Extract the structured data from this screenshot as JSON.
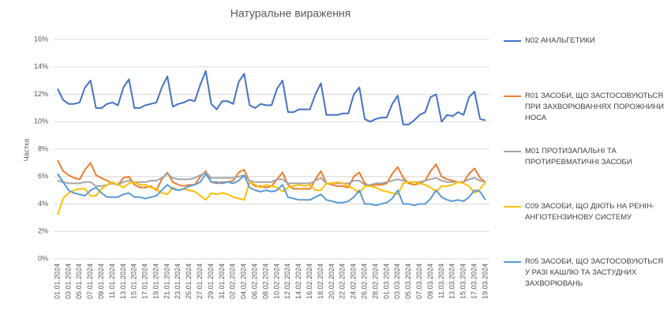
{
  "chart_data": {
    "type": "line",
    "title": "Натуральне вираження",
    "y_label": "Частка",
    "categories": [
      "01.01.2024",
      null,
      "03.01.2024",
      null,
      "05.01.2024",
      null,
      "07.01.2024",
      null,
      "09.01.2024",
      null,
      "11.01.2024",
      null,
      "13.01.2024",
      null,
      "15.01.2024",
      null,
      "17.01.2024",
      null,
      "19.01.2024",
      null,
      "21.01.2024",
      null,
      "23.01.2024",
      null,
      "25.01.2024",
      null,
      "27.01.2024",
      null,
      "29.01.2024",
      null,
      "31.01.2024",
      null,
      "02.02.2024",
      null,
      "04.02.2024",
      null,
      "06.02.2024",
      null,
      "08.02.2024",
      null,
      "10.02.2024",
      null,
      "12.02.2024",
      null,
      "14.02.2024",
      null,
      "16.02.2024",
      null,
      "18.02.2024",
      null,
      "20.02.2024",
      null,
      "22.02.2024",
      null,
      "24.02.2024",
      null,
      "26.02.2024",
      null,
      "28.02.2024",
      null,
      "01.03.2024",
      null,
      "03.03.2024",
      null,
      "05.03.2024",
      null,
      "07.03.2024",
      null,
      "09.03.2024",
      null,
      "11.03.2024",
      null,
      "13.03.2024",
      null,
      "15.03.2024",
      null,
      "17.03.2024",
      null,
      "19.03.2024"
    ],
    "series": [
      {
        "name": "N02 АНАЛЬГЕТИКИ",
        "color": "#4472c4",
        "values": [
          12.4,
          11.6,
          11.3,
          11.3,
          11.4,
          12.5,
          13.0,
          11.0,
          11.0,
          11.3,
          11.4,
          11.2,
          12.5,
          13.1,
          11.0,
          11.0,
          11.2,
          11.3,
          11.4,
          12.5,
          13.3,
          11.1,
          11.3,
          11.4,
          11.6,
          11.5,
          12.7,
          13.7,
          11.3,
          10.9,
          11.5,
          11.5,
          11.3,
          12.9,
          13.5,
          11.2,
          11.0,
          11.3,
          11.2,
          11.2,
          12.4,
          13.0,
          10.7,
          10.7,
          10.9,
          10.9,
          10.9,
          12.0,
          12.8,
          10.5,
          10.5,
          10.5,
          10.6,
          10.6,
          12.0,
          12.5,
          10.2,
          10.0,
          10.2,
          10.3,
          10.3,
          11.3,
          11.9,
          9.8,
          9.8,
          10.1,
          10.5,
          10.7,
          11.8,
          12.0,
          10.0,
          10.5,
          10.4,
          10.7,
          10.5,
          11.8,
          12.2,
          10.2,
          10.1
        ]
      },
      {
        "name": "R01 ЗАСОБИ, ЩО ЗАСТОСОВУЮТЬСЯ ПРИ ЗАХВОРЮВАННЯХ ПОРОЖНИНИ НОСА",
        "color": "#ed7d31",
        "values": [
          7.2,
          6.4,
          6.1,
          5.9,
          5.8,
          6.5,
          7.0,
          6.1,
          5.9,
          5.7,
          5.5,
          5.4,
          5.9,
          6.0,
          5.4,
          5.2,
          5.2,
          5.3,
          5.0,
          5.8,
          6.3,
          5.6,
          5.4,
          5.3,
          5.4,
          5.4,
          6.0,
          6.4,
          5.6,
          5.5,
          5.6,
          5.6,
          5.7,
          6.3,
          6.5,
          5.6,
          5.3,
          5.3,
          5.2,
          5.3,
          5.8,
          6.3,
          5.4,
          5.1,
          5.1,
          5.1,
          5.1,
          5.8,
          6.4,
          5.5,
          5.4,
          5.3,
          5.3,
          5.2,
          6.0,
          6.3,
          5.5,
          5.3,
          5.4,
          5.4,
          5.5,
          6.2,
          6.7,
          5.9,
          5.5,
          5.4,
          5.5,
          5.7,
          6.4,
          6.9,
          6.0,
          5.8,
          5.7,
          5.6,
          5.6,
          6.2,
          6.6,
          5.9,
          5.6
        ]
      },
      {
        "name": "M01 ПРОТИЗАПАЛЬНІ ТА ПРОТИРЕВМАТИЧНІ ЗАСОБИ",
        "color": "#a5a5a5",
        "values": [
          5.7,
          5.6,
          5.5,
          5.5,
          5.5,
          5.6,
          5.6,
          5.3,
          5.3,
          5.4,
          5.5,
          5.4,
          5.6,
          5.7,
          5.6,
          5.6,
          5.6,
          5.7,
          5.7,
          5.9,
          6.2,
          5.9,
          5.8,
          5.8,
          5.8,
          5.9,
          6.1,
          6.3,
          5.9,
          5.9,
          5.9,
          5.9,
          5.9,
          6.0,
          6.1,
          5.7,
          5.6,
          5.6,
          5.6,
          5.6,
          5.8,
          5.8,
          5.5,
          5.5,
          5.5,
          5.5,
          5.5,
          5.7,
          5.9,
          5.5,
          5.5,
          5.5,
          5.5,
          5.5,
          5.7,
          5.7,
          5.4,
          5.4,
          5.5,
          5.5,
          5.6,
          5.7,
          5.8,
          5.7,
          5.6,
          5.6,
          5.6,
          5.7,
          5.8,
          5.9,
          5.7,
          5.6,
          5.6,
          5.6,
          5.6,
          5.8,
          5.9,
          5.7,
          5.6
        ]
      },
      {
        "name": "C09 ЗАСОБИ, ЩО ДІЮТЬ НА РЕНІН-АНГІОТЕНЗИНОВУ СИСТЕМУ",
        "color": "#ffc000",
        "values": [
          3.2,
          4.4,
          4.8,
          5.0,
          5.1,
          5.1,
          4.6,
          4.6,
          5.1,
          5.4,
          5.6,
          5.4,
          5.2,
          5.5,
          5.6,
          5.4,
          5.4,
          5.2,
          5.1,
          4.8,
          4.7,
          5.2,
          5.0,
          5.1,
          5.0,
          4.9,
          4.6,
          4.3,
          4.8,
          4.7,
          4.8,
          4.7,
          4.5,
          4.4,
          4.3,
          5.6,
          5.4,
          5.2,
          5.4,
          5.3,
          5.2,
          4.9,
          5.2,
          5.3,
          5.4,
          5.3,
          5.4,
          5.0,
          5.0,
          5.5,
          5.5,
          5.6,
          5.5,
          5.3,
          5.1,
          4.8,
          5.3,
          5.3,
          5.2,
          5.0,
          4.9,
          4.8,
          4.7,
          5.5,
          5.6,
          5.6,
          5.5,
          5.4,
          5.2,
          4.9,
          5.3,
          5.3,
          5.4,
          5.6,
          5.5,
          5.3,
          4.8,
          5.1,
          5.6
        ]
      },
      {
        "name": "R05 ЗАСОБИ, ЩО ЗАСТОСОВУЮТЬСЯ У РАЗІ КАШЛЮ ТА ЗАСТУДНИХ ЗАХВОРЮВАНЬ",
        "color": "#5b9bd5",
        "values": [
          6.2,
          5.6,
          5.0,
          4.8,
          4.7,
          4.6,
          5.0,
          5.2,
          4.8,
          4.5,
          4.5,
          4.5,
          4.7,
          4.8,
          4.5,
          4.5,
          4.4,
          4.5,
          4.6,
          5.0,
          5.4,
          5.1,
          5.0,
          5.1,
          5.3,
          5.4,
          5.6,
          6.2,
          5.6,
          5.6,
          5.5,
          5.6,
          5.5,
          5.7,
          6.1,
          5.2,
          5.0,
          4.9,
          5.0,
          4.9,
          5.0,
          5.4,
          4.5,
          4.4,
          4.3,
          4.3,
          4.3,
          4.5,
          4.7,
          4.3,
          4.2,
          4.1,
          4.1,
          4.2,
          4.5,
          5.0,
          4.0,
          4.0,
          3.9,
          4.0,
          4.1,
          4.4,
          5.0,
          4.0,
          4.0,
          3.9,
          4.0,
          4.0,
          4.4,
          5.0,
          4.5,
          4.3,
          4.2,
          4.3,
          4.2,
          4.5,
          5.0,
          4.9,
          4.3
        ]
      }
    ],
    "ylim": [
      0,
      16
    ],
    "yticks": [
      {
        "value": 0,
        "label": "0%"
      },
      {
        "value": 2,
        "label": "2%"
      },
      {
        "value": 4,
        "label": "4%"
      },
      {
        "value": 6,
        "label": "6%"
      },
      {
        "value": 8,
        "label": "8%"
      },
      {
        "value": 10,
        "label": "10%"
      },
      {
        "value": 12,
        "label": "12%"
      },
      {
        "value": 14,
        "label": "14%"
      },
      {
        "value": 16,
        "label": "16%"
      }
    ],
    "grid": true,
    "legend": "right"
  }
}
